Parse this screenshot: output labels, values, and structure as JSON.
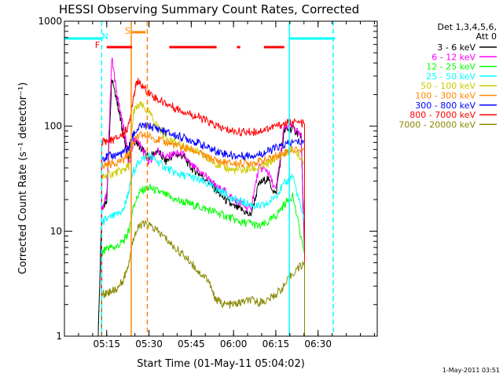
{
  "chart_data": {
    "type": "line",
    "title": "HESSI Observing Summary Count Rates, Corrected",
    "xlabel": "Start Time (01-May-11 05:04:02)",
    "ylabel": "Corrected Count Rate (s⁻¹ detector⁻¹)",
    "xlim": [
      5.0,
      6.85
    ],
    "ylim": [
      1,
      1000
    ],
    "yscale": "log",
    "x_unit": "hours UT",
    "x_ticks": [
      {
        "value": 5.25,
        "label": "05:15"
      },
      {
        "value": 5.5,
        "label": "05:30"
      },
      {
        "value": 5.75,
        "label": "05:45"
      },
      {
        "value": 6.0,
        "label": "06:00"
      },
      {
        "value": 6.25,
        "label": "06:15"
      },
      {
        "value": 6.5,
        "label": "06:30"
      }
    ],
    "y_ticks": [
      {
        "value": 1,
        "label": "1"
      },
      {
        "value": 10,
        "label": "10"
      },
      {
        "value": 100,
        "label": "100"
      },
      {
        "value": 1000,
        "label": "1000"
      }
    ],
    "legend": {
      "placement": "right",
      "header": [
        "Det 1,3,4,5,6,",
        "Att 0"
      ]
    },
    "series": [
      {
        "name": "3 - 6 keV",
        "color": "#000000",
        "x": [
          5.2,
          5.205,
          5.22,
          5.25,
          5.28,
          5.31,
          5.33,
          5.35,
          5.37,
          5.38,
          5.41,
          5.43,
          5.45,
          5.5,
          5.55,
          5.6,
          5.65,
          5.7,
          5.75,
          5.8,
          5.85,
          5.9,
          5.95,
          6.0,
          6.05,
          6.1,
          6.15,
          6.2,
          6.25,
          6.3,
          6.35,
          6.4,
          6.42
        ],
        "y": [
          1.1,
          2.0,
          15,
          20,
          300,
          180,
          120,
          80,
          60,
          48,
          72,
          70,
          62,
          50,
          58,
          46,
          54,
          52,
          40,
          35,
          30,
          24,
          20,
          17,
          16,
          14,
          28,
          32,
          22,
          90,
          95,
          80,
          6
        ]
      },
      {
        "name": "6 - 12 keV",
        "color": "#ff00ff",
        "x": [
          5.22,
          5.25,
          5.28,
          5.31,
          5.33,
          5.35,
          5.37,
          5.38,
          5.41,
          5.43,
          5.45,
          5.5,
          5.55,
          5.6,
          5.65,
          5.7,
          5.75,
          5.8,
          5.85,
          5.9,
          5.95,
          6.0,
          6.05,
          6.1,
          6.15,
          6.2,
          6.25,
          6.3,
          6.35,
          6.4,
          6.42
        ],
        "y": [
          16,
          22,
          450,
          200,
          140,
          95,
          65,
          40,
          75,
          74,
          65,
          45,
          60,
          50,
          55,
          54,
          42,
          37,
          32,
          26,
          24,
          20,
          18,
          16,
          40,
          38,
          24,
          98,
          100,
          78,
          8
        ]
      },
      {
        "name": "12 - 25 keV",
        "color": "#00ff00",
        "x": [
          5.22,
          5.25,
          5.3,
          5.35,
          5.38,
          5.41,
          5.45,
          5.5,
          5.55,
          5.6,
          5.65,
          5.7,
          5.75,
          5.8,
          5.85,
          5.9,
          5.95,
          6.0,
          6.05,
          6.1,
          6.15,
          6.2,
          6.25,
          6.3,
          6.35,
          6.42
        ],
        "y": [
          6,
          7,
          7,
          8,
          10,
          18,
          24,
          26,
          24,
          22,
          20,
          19,
          18,
          17,
          16,
          15,
          14,
          13,
          12,
          12,
          11,
          12,
          14,
          18,
          22,
          6
        ]
      },
      {
        "name": "25 - 50 keV",
        "color": "#00ffff",
        "x": [
          5.22,
          5.25,
          5.3,
          5.35,
          5.38,
          5.41,
          5.45,
          5.5,
          5.55,
          5.6,
          5.65,
          5.7,
          5.75,
          5.8,
          5.85,
          5.9,
          5.95,
          6.0,
          6.05,
          6.1,
          6.15,
          6.2,
          6.25,
          6.3,
          6.35,
          6.42
        ],
        "y": [
          12,
          13,
          14,
          16,
          24,
          38,
          48,
          52,
          46,
          40,
          36,
          34,
          33,
          30,
          28,
          25,
          23,
          20,
          19,
          18,
          17,
          18,
          22,
          28,
          34,
          12
        ]
      },
      {
        "name": "50 - 100 keV",
        "color": "#cccc00",
        "x": [
          5.22,
          5.25,
          5.3,
          5.35,
          5.38,
          5.41,
          5.45,
          5.5,
          5.55,
          5.6,
          5.65,
          5.7,
          5.75,
          5.8,
          5.85,
          5.9,
          5.95,
          6.0,
          6.05,
          6.1,
          6.15,
          6.2,
          6.25,
          6.3,
          6.35,
          6.42
        ],
        "y": [
          32,
          34,
          36,
          38,
          42,
          140,
          160,
          135,
          100,
          80,
          70,
          64,
          60,
          55,
          48,
          44,
          40,
          38,
          38,
          39,
          40,
          43,
          50,
          55,
          60,
          46
        ]
      },
      {
        "name": "100 - 300 keV",
        "color": "#ff8800",
        "x": [
          5.22,
          5.25,
          5.3,
          5.35,
          5.38,
          5.41,
          5.45,
          5.5,
          5.55,
          5.6,
          5.65,
          5.7,
          5.75,
          5.8,
          5.85,
          5.9,
          5.95,
          6.0,
          6.05,
          6.1,
          6.15,
          6.2,
          6.25,
          6.3,
          6.35,
          6.42
        ],
        "y": [
          42,
          43,
          45,
          48,
          55,
          72,
          82,
          80,
          75,
          70,
          66,
          62,
          60,
          55,
          50,
          47,
          45,
          44,
          44,
          45,
          46,
          48,
          52,
          56,
          60,
          60
        ]
      },
      {
        "name": "300 - 800 keV",
        "color": "#0000ff",
        "x": [
          5.22,
          5.25,
          5.3,
          5.35,
          5.38,
          5.41,
          5.45,
          5.5,
          5.55,
          5.6,
          5.65,
          5.7,
          5.75,
          5.8,
          5.85,
          5.9,
          5.95,
          6.0,
          6.05,
          6.1,
          6.15,
          6.2,
          6.25,
          6.3,
          6.35,
          6.42
        ],
        "y": [
          50,
          51,
          53,
          56,
          62,
          85,
          100,
          100,
          95,
          88,
          82,
          78,
          74,
          68,
          62,
          58,
          55,
          52,
          52,
          53,
          54,
          57,
          62,
          66,
          70,
          72
        ]
      },
      {
        "name": "800 - 7000 keV",
        "color": "#ff0000",
        "x": [
          5.22,
          5.25,
          5.3,
          5.35,
          5.38,
          5.41,
          5.43,
          5.45,
          5.5,
          5.55,
          5.6,
          5.65,
          5.7,
          5.75,
          5.8,
          5.85,
          5.9,
          5.95,
          6.0,
          6.05,
          6.1,
          6.15,
          6.2,
          6.25,
          6.3,
          6.35,
          6.42
        ],
        "y": [
          72,
          72,
          75,
          85,
          100,
          200,
          270,
          250,
          210,
          180,
          165,
          150,
          140,
          130,
          120,
          110,
          100,
          93,
          90,
          88,
          88,
          90,
          95,
          100,
          105,
          110,
          105
        ]
      },
      {
        "name": "7000 - 20000 keV",
        "color": "#888800",
        "x": [
          5.22,
          5.25,
          5.28,
          5.31,
          5.35,
          5.38,
          5.41,
          5.45,
          5.5,
          5.55,
          5.6,
          5.65,
          5.7,
          5.75,
          5.8,
          5.85,
          5.88,
          5.9,
          5.95,
          6.0,
          6.05,
          6.1,
          6.15,
          6.2,
          6.25,
          6.3,
          6.35,
          6.42
        ],
        "y": [
          2.5,
          2.6,
          2.7,
          2.8,
          3.5,
          5,
          9,
          11.5,
          11.5,
          10,
          8.5,
          7,
          6,
          5,
          4,
          3.5,
          2.5,
          2.2,
          2.0,
          2.0,
          2.1,
          2.2,
          2.1,
          2.2,
          2.5,
          3,
          4,
          5
        ]
      }
    ],
    "attenuator_bars": {
      "F": {
        "label": "F",
        "color": "#ff0000",
        "segments": [
          [
            5.25,
            5.4
          ],
          [
            5.62,
            5.9
          ],
          [
            6.02,
            6.04
          ],
          [
            6.18,
            6.3
          ]
        ]
      },
      "N": {
        "label": "N",
        "color": "#00ffff",
        "segments": [
          [
            5.0,
            5.22
          ],
          [
            6.33,
            6.6
          ]
        ]
      },
      "S": {
        "label": "S",
        "color": "#ff8800",
        "segments": [
          [
            5.4,
            5.48
          ]
        ]
      }
    },
    "vertical_markers": [
      {
        "x": 5.22,
        "color": "#00ffff",
        "style": "dashed"
      },
      {
        "x": 5.395,
        "color": "#ff8800",
        "style": "solid"
      },
      {
        "x": 5.49,
        "color": "#ff8800",
        "style": "dashed"
      },
      {
        "x": 6.33,
        "color": "#00ffff",
        "style": "solid"
      },
      {
        "x": 6.59,
        "color": "#00ffff",
        "style": "dashed"
      }
    ],
    "footer_date": "1-May-2011 03:51"
  }
}
